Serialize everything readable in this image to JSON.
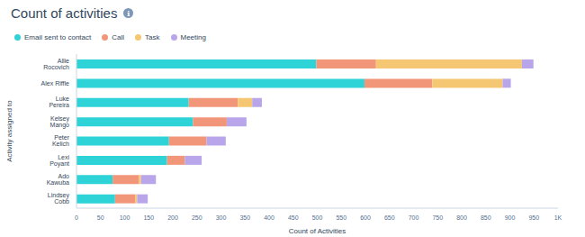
{
  "chart_data": {
    "type": "bar",
    "title": "Count of activities",
    "orientation": "horizontal",
    "stacked": true,
    "grid": false,
    "legend": "top-left",
    "x_label": "Count of Activities",
    "y_label": "Activity assigned to",
    "categories": [
      "Allie Rocovich",
      "Alex Riffle",
      "Luke Pereira",
      "Kelsey Mango",
      "Peter Kelich",
      "Lexi Poyant",
      "Ado Kawuba",
      "Lindsey Cobb"
    ],
    "series": [
      {
        "name": "Email sent to contact",
        "color": "#2dd3d7",
        "values": [
          498,
          598,
          233,
          242,
          192,
          188,
          75,
          80
        ]
      },
      {
        "name": "Call",
        "color": "#f2967a",
        "values": [
          124,
          141,
          102,
          70,
          78,
          37,
          55,
          42
        ]
      },
      {
        "name": "Task",
        "color": "#f5c772",
        "values": [
          303,
          146,
          30,
          0,
          0,
          0,
          4,
          4
        ]
      },
      {
        "name": "Meeting",
        "color": "#b9a6ea",
        "values": [
          24,
          17,
          20,
          41,
          40,
          35,
          31,
          22
        ]
      }
    ],
    "xlim": [
      0,
      1000
    ],
    "xticks": [
      0,
      50,
      100,
      150,
      200,
      250,
      300,
      350,
      400,
      450,
      500,
      550,
      600,
      650,
      700,
      750,
      800,
      850,
      900,
      950,
      {
        "value": 1000,
        "label": "1K"
      }
    ]
  }
}
